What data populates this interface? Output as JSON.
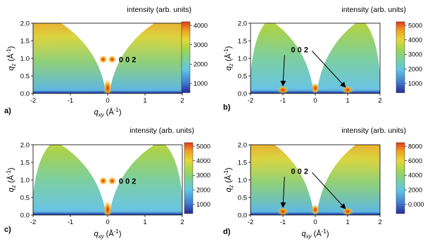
{
  "panels": [
    {
      "id": "a",
      "panel_label": "a)",
      "colorbar_title": "intensity (arb. units)",
      "colorbar_ticks": [
        "4000",
        "3000",
        "2000",
        "1000"
      ],
      "annotation": "0 0 2",
      "peaks_marked": "on-axis",
      "arrows": 0,
      "x_axis_label_shown": true
    },
    {
      "id": "b",
      "panel_label": "b)",
      "colorbar_title": "intensity (arb. units)",
      "colorbar_ticks": [
        "5000",
        "4000",
        "3000",
        "2000",
        "1000"
      ],
      "annotation": "0 0 2",
      "peaks_marked": "off-axis",
      "arrows": 2,
      "x_axis_label_shown": false
    },
    {
      "id": "c",
      "panel_label": "c)",
      "colorbar_title": "intensity (arb. units)",
      "colorbar_ticks": [
        "5000",
        "4000",
        "3000",
        "2000",
        "1000"
      ],
      "annotation": "0 0 2",
      "peaks_marked": "on-axis",
      "arrows": 0,
      "x_axis_label_shown": true
    },
    {
      "id": "d",
      "panel_label": "d)",
      "colorbar_title": "intensity (arb. units)",
      "colorbar_ticks": [
        "8000",
        "6000",
        "4000",
        "2000",
        "0.000"
      ],
      "annotation": "0 0 2",
      "peaks_marked": "off-axis",
      "arrows": 2,
      "x_axis_label_shown": true
    }
  ],
  "axes": {
    "x_label_base": "q",
    "x_label_sub": "xy",
    "x_label_unit": " (Å",
    "y_label_base": "q",
    "y_label_sub": "z",
    "y_label_unit": " (Å",
    "unit_exp": "-1",
    "unit_close": ")",
    "x_ticks": [
      "-2",
      "-1",
      "0",
      "1",
      "2"
    ],
    "y_ticks": [
      "2.0",
      "1.5",
      "1.0",
      "0.5",
      "0.0"
    ],
    "xlim": [
      -2,
      2
    ],
    "ylim": [
      0,
      2
    ]
  },
  "colors": {
    "colormap": [
      "#2a2a9a",
      "#3f7fd0",
      "#5fc8e6",
      "#7ed28a",
      "#a6d64a",
      "#e6d838",
      "#f0a020",
      "#e03a1a"
    ]
  }
}
